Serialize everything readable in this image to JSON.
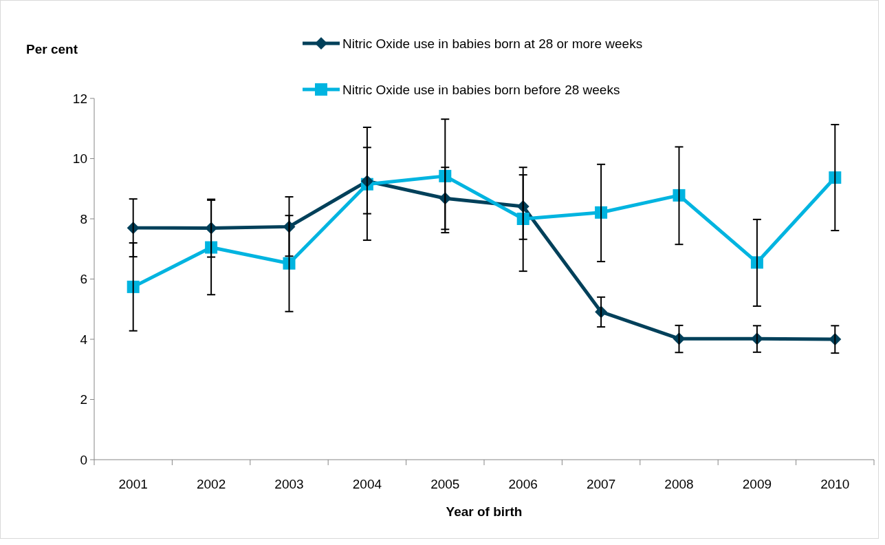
{
  "chart_data": {
    "type": "line",
    "ylabel": "Per cent",
    "xlabel": "Year of birth",
    "categories": [
      "2001",
      "2002",
      "2003",
      "2004",
      "2005",
      "2006",
      "2007",
      "2008",
      "2009",
      "2010"
    ],
    "ylim": [
      0,
      12
    ],
    "yticks": [
      0,
      2,
      4,
      6,
      8,
      10,
      12
    ],
    "grid": false,
    "legend": "top",
    "line_style": "solid",
    "series": [
      {
        "name": "Nitric Oxide use in babies born at 28 or more weeks",
        "color": "#00405a",
        "marker": "diamond",
        "values": [
          7.7,
          7.69,
          7.74,
          9.25,
          8.68,
          8.41,
          4.91,
          4.02,
          4.02,
          4.0
        ],
        "errors": [
          [
            6.74,
            8.66
          ],
          [
            6.73,
            8.65
          ],
          [
            6.76,
            8.73
          ],
          [
            8.17,
            10.37
          ],
          [
            7.65,
            9.71
          ],
          [
            7.32,
            9.46
          ],
          [
            4.41,
            5.4
          ],
          [
            3.56,
            4.46
          ],
          [
            3.57,
            4.45
          ],
          [
            3.54,
            4.45
          ]
        ]
      },
      {
        "name": "Nitric Oxide use in babies born before 28 weeks",
        "color": "#00b4e0",
        "marker": "square",
        "values": [
          5.74,
          7.05,
          6.52,
          9.15,
          9.42,
          8.0,
          8.21,
          8.78,
          6.55,
          9.37
        ],
        "errors": [
          [
            4.28,
            7.2
          ],
          [
            5.48,
            8.62
          ],
          [
            4.92,
            8.11
          ],
          [
            7.29,
            11.04
          ],
          [
            7.54,
            11.31
          ],
          [
            6.26,
            9.71
          ],
          [
            6.58,
            9.81
          ],
          [
            7.15,
            10.39
          ],
          [
            5.1,
            7.98
          ],
          [
            7.61,
            11.13
          ]
        ]
      }
    ]
  }
}
